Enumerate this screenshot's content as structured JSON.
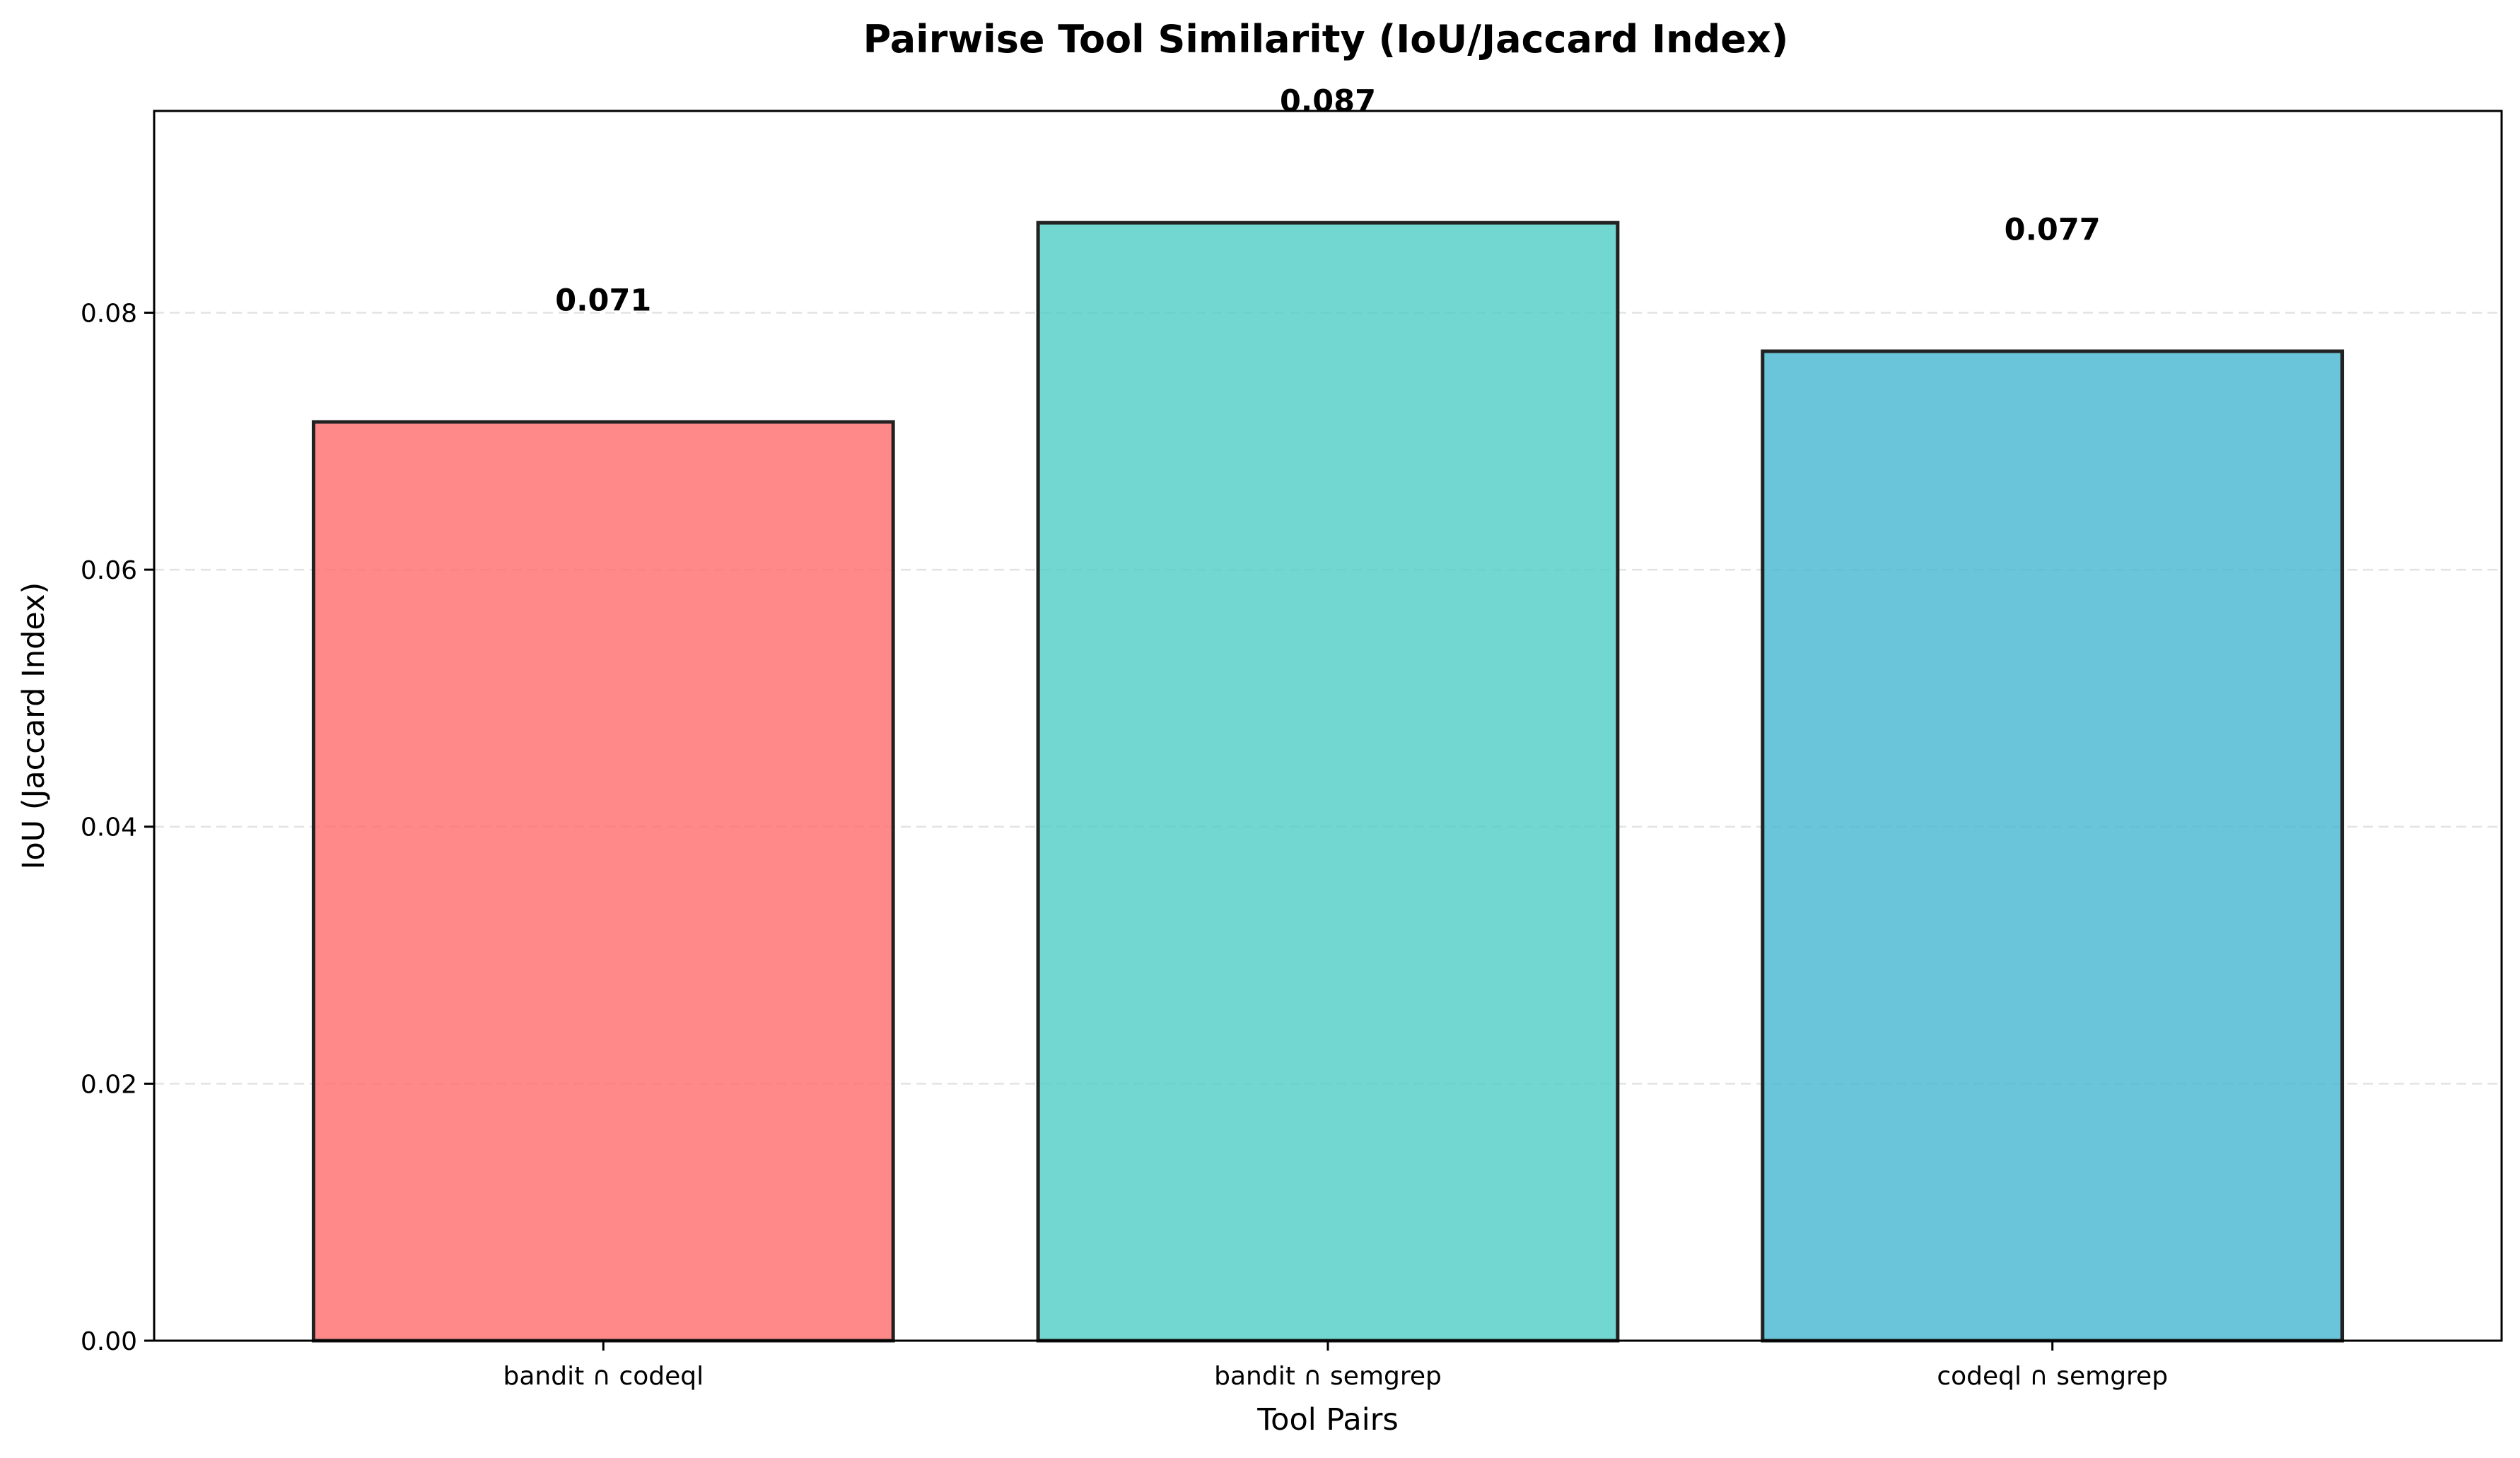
{
  "chart_data": {
    "type": "bar",
    "title": "Pairwise Tool Similarity (IoU/Jaccard Index)",
    "xlabel": "Tool Pairs",
    "ylabel": "IoU (Jaccard Index)",
    "categories": [
      "bandit ∩ codeql",
      "bandit ∩ semgrep",
      "codeql ∩ semgrep"
    ],
    "values": [
      0.0715,
      0.087,
      0.077
    ],
    "data_labels": [
      "0.071",
      "0.087",
      "0.077"
    ],
    "colors": [
      "#FF6B6B",
      "#4ECDC4",
      "#45B7D1"
    ],
    "bar_edge_color": "#222222",
    "ylim": [
      0,
      0.0957
    ],
    "yticks": [
      0.0,
      0.02,
      0.04,
      0.06,
      0.08
    ],
    "ytick_labels": [
      "0.00",
      "0.02",
      "0.04",
      "0.06",
      "0.08"
    ],
    "grid": "y-dashed",
    "legend": "none"
  }
}
